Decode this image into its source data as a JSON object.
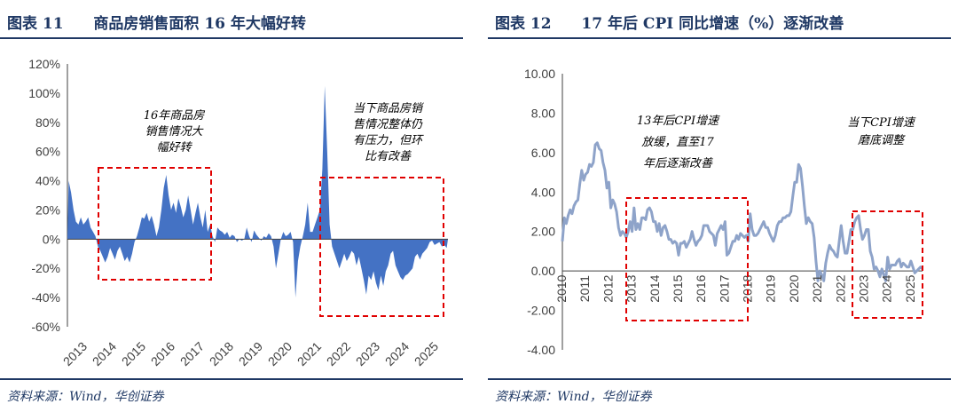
{
  "left": {
    "figure_label": "图表 11",
    "title": "商品房销售面积 16 年大幅好转",
    "source": "资料来源：Wind，华创证券"
  },
  "right": {
    "figure_label": "图表 12",
    "title": "17 年后 CPI 同比增速（%）逐渐改善",
    "source": "资料来源：Wind，华创证券"
  },
  "colors": {
    "header": "#1f3864",
    "area": "#4472c4",
    "line": "#8ea3c9",
    "box": "#e00000",
    "grid": "#404040"
  },
  "chart_data": [
    {
      "type": "area",
      "title": "商品房销售面积 16 年大幅好转",
      "ylim": [
        -0.6,
        1.2
      ],
      "yticks": [
        "-60%",
        "-40%",
        "-20%",
        "0%",
        "20%",
        "40%",
        "60%",
        "80%",
        "100%",
        "120%"
      ],
      "xticks": [
        "2013",
        "2014",
        "2015",
        "2016",
        "2017",
        "2018",
        "2019",
        "2020",
        "2021",
        "2022",
        "2023",
        "2024",
        "2025"
      ],
      "x_start": 2013.0,
      "x_end": 2026.0,
      "monthly_values": [
        0.4,
        0.32,
        0.2,
        0.12,
        0.1,
        0.15,
        0.1,
        0.12,
        0.15,
        0.08,
        0.05,
        0.02,
        -0.05,
        -0.08,
        -0.12,
        -0.16,
        -0.12,
        -0.06,
        -0.1,
        -0.14,
        -0.08,
        -0.05,
        -0.1,
        -0.15,
        -0.12,
        -0.16,
        -0.1,
        -0.02,
        0.02,
        0.08,
        0.15,
        0.14,
        0.18,
        0.12,
        0.16,
        0.1,
        0.02,
        0.08,
        0.2,
        0.35,
        0.44,
        0.3,
        0.2,
        0.25,
        0.18,
        0.28,
        0.22,
        0.15,
        0.2,
        0.3,
        0.2,
        0.1,
        0.18,
        0.25,
        0.15,
        0.08,
        0.2,
        0.05,
        0.1,
        0.02,
        -0.02,
        0.08,
        0.06,
        0.05,
        0.03,
        0.05,
        0.01,
        0.03,
        0.02,
        -0.02,
        0.0,
        -0.01,
        0.0,
        0.08,
        0.02,
        -0.02,
        0.06,
        0.03,
        0.01,
        -0.01,
        0.02,
        0.01,
        0.04,
        0.02,
        -0.05,
        -0.2,
        -0.1,
        0.0,
        0.05,
        0.02,
        0.03,
        0.05,
        -0.02,
        -0.4,
        -0.15,
        -0.05,
        0.02,
        0.1,
        0.25,
        0.05,
        0.05,
        0.1,
        0.15,
        0.2,
        0.48,
        1.05,
        0.6,
        0.1,
        -0.05,
        -0.1,
        -0.15,
        -0.2,
        -0.15,
        -0.1,
        -0.15,
        -0.12,
        -0.08,
        -0.1,
        -0.18,
        -0.12,
        -0.2,
        -0.28,
        -0.38,
        -0.25,
        -0.28,
        -0.22,
        -0.3,
        -0.35,
        -0.25,
        -0.32,
        -0.22,
        -0.18,
        -0.1,
        -0.08,
        -0.18,
        -0.22,
        -0.26,
        -0.28,
        -0.25,
        -0.24,
        -0.22,
        -0.2,
        -0.12,
        -0.1,
        -0.14,
        -0.1,
        -0.08,
        -0.06,
        -0.02,
        -0.01,
        -0.04,
        -0.03,
        -0.02,
        -0.05,
        -0.04,
        -0.06
      ],
      "annotations": [
        "16年商品房\n销售情况大\n幅好转",
        "当下商品房销\n售情况整体仍\n有压力，但环\n比有改善"
      ],
      "highlight_ranges": [
        [
          2014.0,
          2018.0
        ],
        [
          2021.5,
          2026.0
        ]
      ]
    },
    {
      "type": "line",
      "title": "17 年后 CPI 同比增速（%）逐渐改善",
      "ylim": [
        -4,
        10
      ],
      "yticks": [
        "-4.00",
        "-2.00",
        "0.00",
        "2.00",
        "4.00",
        "6.00",
        "8.00",
        "10.00"
      ],
      "xticks": [
        "2010",
        "2011",
        "2012",
        "2013",
        "2014",
        "2015",
        "2016",
        "2017",
        "2018",
        "2019",
        "2020",
        "2021",
        "2022",
        "2023",
        "2024",
        "2025"
      ],
      "x_start": 2010.0,
      "x_end": 2025.5,
      "values": [
        1.5,
        2.7,
        2.4,
        2.8,
        3.1,
        2.9,
        3.3,
        3.5,
        3.6,
        4.4,
        5.1,
        4.6,
        4.9,
        5.0,
        5.4,
        5.3,
        5.5,
        6.4,
        6.5,
        6.2,
        6.1,
        5.5,
        5.1,
        4.2,
        4.5,
        3.2,
        3.6,
        3.4,
        3.0,
        2.2,
        1.8,
        2.0,
        1.9,
        1.7,
        2.0,
        2.5,
        2.0,
        3.2,
        2.1,
        2.4,
        2.1,
        2.7,
        2.7,
        2.6,
        3.1,
        3.2,
        3.0,
        2.5,
        2.5,
        2.0,
        2.4,
        1.8,
        2.2,
        2.3,
        2.0,
        1.6,
        1.6,
        1.4,
        1.5,
        1.4,
        0.8,
        1.4,
        1.4,
        1.5,
        1.2,
        1.4,
        1.6,
        2.0,
        1.6,
        1.3,
        1.5,
        1.6,
        1.8,
        2.3,
        2.3,
        2.3,
        2.0,
        1.9,
        1.8,
        1.3,
        1.9,
        2.1,
        2.3,
        2.1,
        2.5,
        0.8,
        0.9,
        1.2,
        1.5,
        1.5,
        1.8,
        1.6,
        1.9,
        1.8,
        1.7,
        1.8,
        1.5,
        2.9,
        2.1,
        1.8,
        1.8,
        1.9,
        2.1,
        2.3,
        2.5,
        2.2,
        2.2,
        1.9,
        1.7,
        1.5,
        1.8,
        2.3,
        2.5,
        2.5,
        2.7,
        2.7,
        2.8,
        2.8,
        3.0,
        3.8,
        4.5,
        4.5,
        5.4,
        5.2,
        4.3,
        3.3,
        2.4,
        2.7,
        2.5,
        2.4,
        1.7,
        0.5,
        -0.5,
        0.0,
        -0.2,
        -0.5,
        0.4,
        0.9,
        1.3,
        1.1,
        1.0,
        0.8,
        0.7,
        1.5,
        2.3,
        1.5,
        0.9,
        0.9,
        1.5,
        2.1,
        2.1,
        2.5,
        2.7,
        2.8,
        2.1,
        1.6,
        1.8,
        2.1,
        2.1,
        1.0,
        0.7,
        0.1,
        0.2,
        0.0,
        -0.3,
        0.1,
        -0.2,
        -0.5,
        0.7,
        0.1,
        0.3,
        0.3,
        0.3,
        0.5,
        0.6,
        0.2,
        0.4,
        0.3,
        0.2,
        0.2,
        0.5,
        0.2,
        -0.1,
        0.0,
        0.1,
        0.2,
        0.1
      ],
      "annotations": [
        "13年后CPI增速\n放缓，直至17\n年后逐渐改善",
        "当下CPI增速\n磨底调整"
      ],
      "highlight_ranges": [
        [
          2012.9,
          2018.0
        ],
        [
          2022.6,
          2025.5
        ]
      ]
    }
  ]
}
